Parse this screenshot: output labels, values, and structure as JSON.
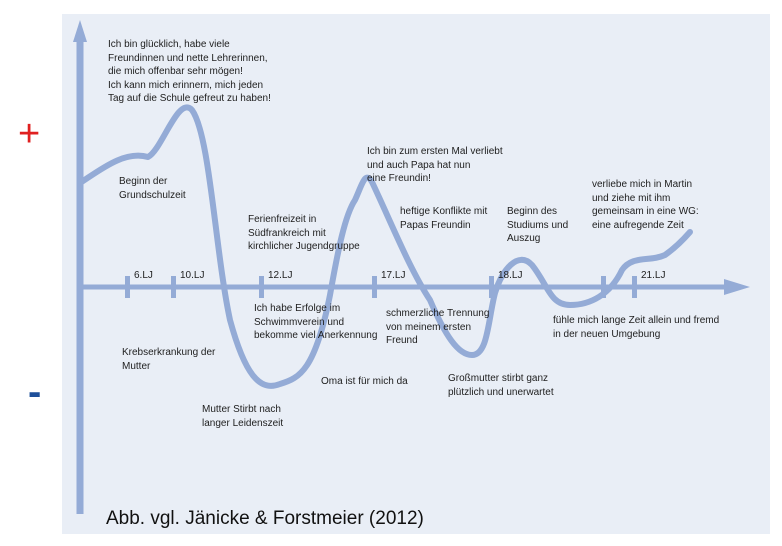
{
  "colors": {
    "panel": "#e9eef6",
    "line": "#94abd6",
    "plus": "#e02020",
    "minus": "#1e4f9a"
  },
  "signs": {
    "plus": "+",
    "minus": "-"
  },
  "age_markers": [
    "6.LJ",
    "10.LJ",
    "12.LJ",
    "17.LJ",
    "18.LJ",
    "21.LJ"
  ],
  "annotations": [
    "Ich bin glücklich, habe viele\nFreundinnen und nette Lehrerinnen,\ndie mich offenbar sehr mögen!\nIch kann mich erinnern, mich jeden\nTag auf die Schule gefreut zu haben!",
    "Beginn der\nGrundschulzeit",
    "Ferienfreizeit in\nSüdfrankreich mit\nkirchlicher Jugendgruppe",
    "Ich bin zum ersten Mal verliebt\nund auch Papa hat nun\neine Freundin!",
    "heftige Konflikte mit\nPapas Freundin",
    "Beginn des\nStudiums und\nAuszug",
    "verliebe mich in Martin\nund ziehe mit ihm\ngemeinsam in eine WG:\neine aufregende Zeit",
    "Ich habe Erfolge im\nSchwimmverein und\nbekomme viel Anerkennung",
    "schmerzliche Trennung\nvon meinem ersten\nFreund",
    "fühle mich lange Zeit allein und fremd\nin der neuen Umgebung",
    "Krebserkrankung der\nMutter",
    "Oma ist für mich da",
    "Großmutter stirbt ganz\nplützlich und unerwartet",
    "Mutter Stirbt nach\nlanger Leidenszeit"
  ],
  "citation": "Abb. vgl. Jänicke & Forstmeier (2012)"
}
